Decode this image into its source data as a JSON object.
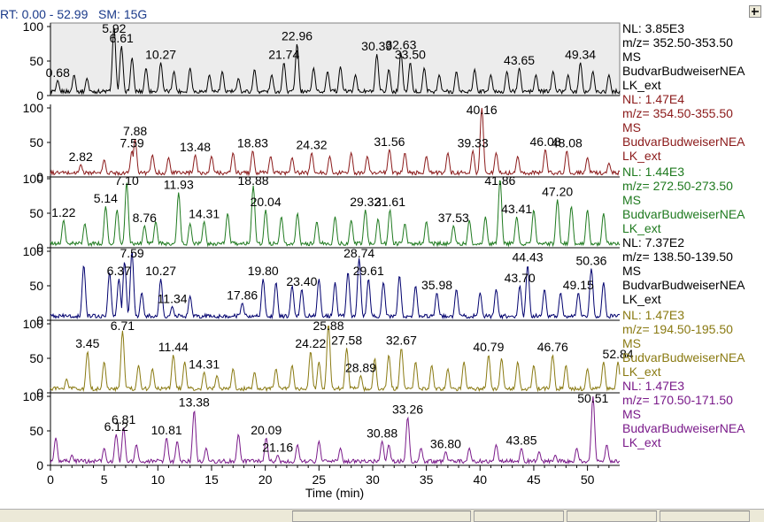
{
  "header": {
    "rt_label": "RT:",
    "rt_range": "0.00 - 52.99",
    "sm_label": "SM:",
    "sm_value": "15G"
  },
  "chart_data": {
    "type": "line",
    "xlabel": "Time (min)",
    "xlim": [
      0,
      53
    ],
    "x_ticks": [
      0,
      5,
      10,
      15,
      20,
      25,
      30,
      35,
      40,
      45,
      50
    ],
    "y_ticks": [
      0,
      50,
      100
    ],
    "panels": [
      {
        "color": "#000000",
        "side_text": [
          "NL: 3.85E3",
          "m/z= 352.50-353.50",
          "MS",
          "BudvarBudweiserNEA",
          "LK_ext"
        ],
        "peaks": [
          [
            0.68,
            22
          ],
          [
            2.2,
            30
          ],
          [
            3.4,
            25
          ],
          [
            5.92,
            100
          ],
          [
            6.61,
            72
          ],
          [
            7.6,
            55
          ],
          [
            8.9,
            40
          ],
          [
            10.27,
            48
          ],
          [
            11.5,
            35
          ],
          [
            13,
            40
          ],
          [
            14.8,
            30
          ],
          [
            16,
            35
          ],
          [
            17.5,
            25
          ],
          [
            19,
            38
          ],
          [
            20.6,
            30
          ],
          [
            21.74,
            48
          ],
          [
            22.96,
            75
          ],
          [
            24.5,
            40
          ],
          [
            25.8,
            35
          ],
          [
            27,
            42
          ],
          [
            28.4,
            30
          ],
          [
            30.39,
            60
          ],
          [
            31.5,
            38
          ],
          [
            32.63,
            62
          ],
          [
            33.5,
            48
          ],
          [
            34.8,
            40
          ],
          [
            36.2,
            30
          ],
          [
            37.8,
            35
          ],
          [
            39.5,
            38
          ],
          [
            41,
            30
          ],
          [
            42.5,
            35
          ],
          [
            43.65,
            40
          ],
          [
            45.2,
            30
          ],
          [
            46.8,
            35
          ],
          [
            48.2,
            30
          ],
          [
            49.34,
            48
          ],
          [
            50.5,
            35
          ],
          [
            52,
            30
          ]
        ],
        "labels": [
          {
            "x": 0.68,
            "t": "0.68"
          },
          {
            "x": 5.92,
            "t": "5.92"
          },
          {
            "x": 6.61,
            "t": "6.61"
          },
          {
            "x": 10.27,
            "t": "10.27"
          },
          {
            "x": 21.74,
            "t": "21.74"
          },
          {
            "x": 22.96,
            "t": "22.96"
          },
          {
            "x": 30.39,
            "t": "30.39"
          },
          {
            "x": 32.63,
            "t": "32.63"
          },
          {
            "x": 33.5,
            "t": "33.50"
          },
          {
            "x": 43.65,
            "t": "43.65"
          },
          {
            "x": 49.34,
            "t": "49.34"
          }
        ]
      },
      {
        "color": "#8b1a1a",
        "side_text": [
          "NL: 1.47E4",
          "m/z= 354.50-355.50",
          "MS",
          "BudvarBudweiserNEA",
          "LK_ext"
        ],
        "peaks": [
          [
            2.82,
            18
          ],
          [
            5,
            25
          ],
          [
            7.59,
            38
          ],
          [
            7.88,
            55
          ],
          [
            9.5,
            32
          ],
          [
            11,
            28
          ],
          [
            13.48,
            32
          ],
          [
            15,
            30
          ],
          [
            17,
            35
          ],
          [
            18.83,
            38
          ],
          [
            20.5,
            30
          ],
          [
            22.5,
            28
          ],
          [
            24.32,
            35
          ],
          [
            26,
            30
          ],
          [
            28,
            35
          ],
          [
            29.5,
            30
          ],
          [
            31.56,
            40
          ],
          [
            33,
            35
          ],
          [
            35,
            30
          ],
          [
            37,
            35
          ],
          [
            39.33,
            38
          ],
          [
            40.16,
            100
          ],
          [
            41.5,
            35
          ],
          [
            43.5,
            30
          ],
          [
            46.08,
            40
          ],
          [
            48.08,
            38
          ],
          [
            50,
            28
          ],
          [
            52,
            20
          ]
        ],
        "labels": [
          {
            "x": 2.82,
            "t": "2.82"
          },
          {
            "x": 7.59,
            "t": "7.59"
          },
          {
            "x": 7.88,
            "t": "7.88"
          },
          {
            "x": 13.48,
            "t": "13.48"
          },
          {
            "x": 18.83,
            "t": "18.83"
          },
          {
            "x": 24.32,
            "t": "24.32"
          },
          {
            "x": 31.56,
            "t": "31.56"
          },
          {
            "x": 39.33,
            "t": "39.33"
          },
          {
            "x": 40.16,
            "t": "40.16"
          },
          {
            "x": 46.08,
            "t": "46.08"
          },
          {
            "x": 48.08,
            "t": "48.08"
          }
        ]
      },
      {
        "color": "#1f7a1f",
        "side_text": [
          "NL: 1.44E3",
          "m/z= 272.50-273.50",
          "MS",
          "BudvarBudweiserNEA",
          "LK_ext"
        ],
        "peaks": [
          [
            1.22,
            40
          ],
          [
            3.2,
            35
          ],
          [
            5.14,
            60
          ],
          [
            6.2,
            55
          ],
          [
            7.1,
            95
          ],
          [
            8.76,
            32
          ],
          [
            9.8,
            38
          ],
          [
            11.93,
            80
          ],
          [
            13,
            35
          ],
          [
            14.31,
            38
          ],
          [
            16.5,
            50
          ],
          [
            18.88,
            90
          ],
          [
            20.04,
            55
          ],
          [
            21.5,
            45
          ],
          [
            23,
            50
          ],
          [
            24.8,
            38
          ],
          [
            26.5,
            45
          ],
          [
            28,
            40
          ],
          [
            29.32,
            55
          ],
          [
            30.5,
            42
          ],
          [
            31.61,
            55
          ],
          [
            33,
            35
          ],
          [
            35,
            38
          ],
          [
            37.53,
            32
          ],
          [
            39,
            40
          ],
          [
            40.5,
            45
          ],
          [
            41.86,
            100
          ],
          [
            43.41,
            45
          ],
          [
            45,
            55
          ],
          [
            47.2,
            70
          ],
          [
            48.5,
            60
          ],
          [
            50,
            55
          ],
          [
            51.5,
            50
          ]
        ],
        "labels": [
          {
            "x": 1.22,
            "t": "1.22"
          },
          {
            "x": 5.14,
            "t": "5.14"
          },
          {
            "x": 7.1,
            "t": "7.10"
          },
          {
            "x": 8.76,
            "t": "8.76"
          },
          {
            "x": 11.93,
            "t": "11.93"
          },
          {
            "x": 14.31,
            "t": "14.31"
          },
          {
            "x": 18.88,
            "t": "18.88"
          },
          {
            "x": 20.04,
            "t": "20.04"
          },
          {
            "x": 29.32,
            "t": "29.32"
          },
          {
            "x": 31.61,
            "t": "31.61"
          },
          {
            "x": 37.53,
            "t": "37.53"
          },
          {
            "x": 41.86,
            "t": "41.86"
          },
          {
            "x": 43.41,
            "t": "43.41"
          },
          {
            "x": 47.2,
            "t": "47.20"
          }
        ]
      },
      {
        "color": "#00006e",
        "side_text": [
          "NL: 7.37E2",
          "m/z= 138.50-139.50",
          "MS",
          "BudvarBudweiserNEA",
          "LK_ext"
        ],
        "peaks": [
          [
            3.1,
            80
          ],
          [
            5.5,
            70
          ],
          [
            6.37,
            60
          ],
          [
            6.9,
            85
          ],
          [
            7.59,
            100
          ],
          [
            8.5,
            40
          ],
          [
            10.27,
            60
          ],
          [
            11.34,
            20
          ],
          [
            13,
            35
          ],
          [
            17.86,
            25
          ],
          [
            19.8,
            60
          ],
          [
            21,
            55
          ],
          [
            22.5,
            50
          ],
          [
            23.4,
            45
          ],
          [
            25,
            60
          ],
          [
            26.5,
            55
          ],
          [
            27.7,
            70
          ],
          [
            28.74,
            90
          ],
          [
            29.61,
            60
          ],
          [
            31,
            55
          ],
          [
            32.5,
            65
          ],
          [
            34,
            50
          ],
          [
            35.98,
            40
          ],
          [
            37.8,
            45
          ],
          [
            40,
            40
          ],
          [
            41.5,
            45
          ],
          [
            43.7,
            50
          ],
          [
            44.43,
            80
          ],
          [
            46,
            45
          ],
          [
            47.5,
            40
          ],
          [
            49.15,
            40
          ],
          [
            50.36,
            75
          ],
          [
            51.5,
            55
          ]
        ],
        "labels": [
          {
            "x": 6.37,
            "t": "6.37"
          },
          {
            "x": 7.59,
            "t": "7.59"
          },
          {
            "x": 10.27,
            "t": "10.27"
          },
          {
            "x": 11.34,
            "t": "11.34"
          },
          {
            "x": 17.86,
            "t": "17.86"
          },
          {
            "x": 19.8,
            "t": "19.80"
          },
          {
            "x": 23.4,
            "t": "23.40"
          },
          {
            "x": 28.74,
            "t": "28.74"
          },
          {
            "x": 29.61,
            "t": "29.61"
          },
          {
            "x": 35.98,
            "t": "35.98"
          },
          {
            "x": 43.7,
            "t": "43.70"
          },
          {
            "x": 44.43,
            "t": "44.43"
          },
          {
            "x": 49.15,
            "t": "49.15"
          },
          {
            "x": 50.36,
            "t": "50.36"
          }
        ]
      },
      {
        "color": "#8a7a12",
        "side_text": [
          "NL: 1.47E3",
          "m/z= 194.50-195.50",
          "MS",
          "BudvarBudweiserNEA",
          "LK_ext"
        ],
        "peaks": [
          [
            1.5,
            20
          ],
          [
            3.45,
            60
          ],
          [
            5,
            45
          ],
          [
            6.71,
            90
          ],
          [
            8.2,
            40
          ],
          [
            9.5,
            35
          ],
          [
            11.44,
            55
          ],
          [
            12.5,
            45
          ],
          [
            14.31,
            30
          ],
          [
            15.5,
            25
          ],
          [
            17,
            35
          ],
          [
            19,
            30
          ],
          [
            21,
            35
          ],
          [
            22.5,
            40
          ],
          [
            24.22,
            60
          ],
          [
            25,
            45
          ],
          [
            25.88,
            100
          ],
          [
            27.58,
            65
          ],
          [
            28.89,
            25
          ],
          [
            30.2,
            50
          ],
          [
            31.5,
            55
          ],
          [
            32.67,
            65
          ],
          [
            34,
            45
          ],
          [
            35.5,
            40
          ],
          [
            37,
            35
          ],
          [
            38.5,
            45
          ],
          [
            40.79,
            55
          ],
          [
            42,
            50
          ],
          [
            43.5,
            45
          ],
          [
            45,
            40
          ],
          [
            46.76,
            55
          ],
          [
            48,
            40
          ],
          [
            50,
            35
          ],
          [
            51.5,
            45
          ],
          [
            52.84,
            45
          ]
        ],
        "labels": [
          {
            "x": 3.45,
            "t": "3.45"
          },
          {
            "x": 6.71,
            "t": "6.71"
          },
          {
            "x": 11.44,
            "t": "11.44"
          },
          {
            "x": 14.31,
            "t": "14.31"
          },
          {
            "x": 24.22,
            "t": "24.22"
          },
          {
            "x": 25.88,
            "t": "25.88"
          },
          {
            "x": 27.58,
            "t": "27.58"
          },
          {
            "x": 28.89,
            "t": "28.89"
          },
          {
            "x": 32.67,
            "t": "32.67"
          },
          {
            "x": 40.79,
            "t": "40.79"
          },
          {
            "x": 46.76,
            "t": "46.76"
          },
          {
            "x": 52.84,
            "t": "52.84"
          }
        ]
      },
      {
        "color": "#7a1a8a",
        "side_text": [
          "NL: 1.47E3",
          "m/z= 170.50-171.50",
          "MS",
          "BudvarBudweiserNEA",
          "LK_ext"
        ],
        "peaks": [
          [
            0.5,
            40
          ],
          [
            2,
            15
          ],
          [
            5,
            25
          ],
          [
            6.12,
            45
          ],
          [
            6.81,
            55
          ],
          [
            8,
            30
          ],
          [
            10.81,
            40
          ],
          [
            11.8,
            35
          ],
          [
            13.38,
            80
          ],
          [
            14.5,
            25
          ],
          [
            17.5,
            45
          ],
          [
            20.09,
            40
          ],
          [
            21.16,
            15
          ],
          [
            23,
            30
          ],
          [
            25,
            35
          ],
          [
            27,
            25
          ],
          [
            30.88,
            35
          ],
          [
            31.5,
            30
          ],
          [
            33.26,
            70
          ],
          [
            34.5,
            25
          ],
          [
            36.8,
            20
          ],
          [
            39,
            25
          ],
          [
            41.5,
            30
          ],
          [
            43.85,
            25
          ],
          [
            45.5,
            20
          ],
          [
            47,
            15
          ],
          [
            49,
            25
          ],
          [
            50.51,
            100
          ],
          [
            51.8,
            30
          ]
        ],
        "labels": [
          {
            "x": 6.12,
            "t": "6.12"
          },
          {
            "x": 6.81,
            "t": "6.81"
          },
          {
            "x": 10.81,
            "t": "10.81"
          },
          {
            "x": 13.38,
            "t": "13.38"
          },
          {
            "x": 20.09,
            "t": "20.09"
          },
          {
            "x": 21.16,
            "t": "21.16"
          },
          {
            "x": 30.88,
            "t": "30.88"
          },
          {
            "x": 33.26,
            "t": "33.26"
          },
          {
            "x": 36.8,
            "t": "36.80"
          },
          {
            "x": 43.85,
            "t": "43.85"
          },
          {
            "x": 50.51,
            "t": "50.51"
          }
        ]
      }
    ]
  }
}
